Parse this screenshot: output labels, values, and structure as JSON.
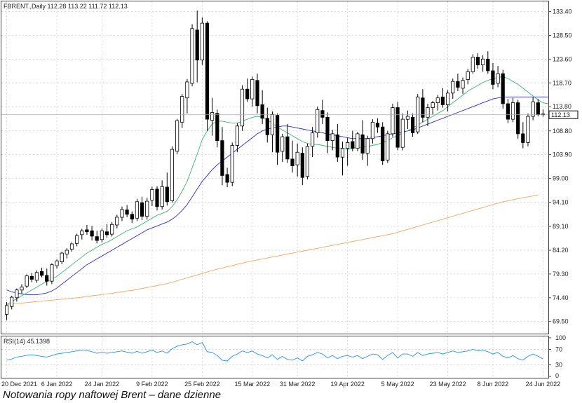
{
  "caption": "Notowania ropy naftowej Brent – dane dzienne",
  "chart_data": {
    "type": "candlestick",
    "instrument_header": "FBRENT.,Daily  112.28 113.22 111.72 112.13",
    "last_price_label": "112.13",
    "last_price": 112.13,
    "ylim": [
      67.0,
      135.5
    ],
    "y_ticks": [
      "133.40",
      "128.50",
      "123.60",
      "118.70",
      "113.80",
      "108.80",
      "103.90",
      "99.00",
      "94.10",
      "89.10",
      "84.20",
      "79.30",
      "74.40",
      "69.50"
    ],
    "x_ticks": [
      "20 Dec 2021",
      "6 Jan 2022",
      "24 Jan 2022",
      "9 Feb 2022",
      "25 Feb 2022",
      "15 Mar 2022",
      "31 Mar 2022",
      "19 Apr 2022",
      "5 May 2022",
      "23 May 2022",
      "8 Jun 2022",
      "24 Jun 2022"
    ],
    "grid": true,
    "colors": {
      "bull": "#ffffff",
      "bear": "#000000",
      "ma_short": "#3cb371",
      "ma_mid": "#2b2bd6",
      "ma_long": "#f4a460",
      "rsi": "#1e90ff",
      "grid": "#c8c8c8"
    },
    "candles": [
      {
        "o": 71.0,
        "h": 73.5,
        "l": 69.8,
        "c": 72.8
      },
      {
        "o": 72.6,
        "h": 74.8,
        "l": 72.0,
        "c": 74.5
      },
      {
        "o": 74.4,
        "h": 76.3,
        "l": 73.6,
        "c": 76.0
      },
      {
        "o": 76.0,
        "h": 77.2,
        "l": 75.2,
        "c": 76.6
      },
      {
        "o": 76.8,
        "h": 79.2,
        "l": 76.4,
        "c": 78.9
      },
      {
        "o": 78.8,
        "h": 79.5,
        "l": 77.6,
        "c": 78.2
      },
      {
        "o": 78.0,
        "h": 80.0,
        "l": 77.5,
        "c": 79.6
      },
      {
        "o": 79.8,
        "h": 80.6,
        "l": 78.6,
        "c": 79.0
      },
      {
        "o": 79.0,
        "h": 80.4,
        "l": 76.9,
        "c": 77.8
      },
      {
        "o": 77.8,
        "h": 81.5,
        "l": 77.2,
        "c": 81.2
      },
      {
        "o": 81.0,
        "h": 82.3,
        "l": 80.4,
        "c": 82.0
      },
      {
        "o": 81.8,
        "h": 83.9,
        "l": 81.3,
        "c": 83.6
      },
      {
        "o": 83.4,
        "h": 84.6,
        "l": 82.5,
        "c": 84.2
      },
      {
        "o": 84.4,
        "h": 85.8,
        "l": 83.9,
        "c": 85.5
      },
      {
        "o": 85.6,
        "h": 87.6,
        "l": 85.0,
        "c": 87.2
      },
      {
        "o": 87.4,
        "h": 88.6,
        "l": 86.4,
        "c": 88.2
      },
      {
        "o": 88.4,
        "h": 89.4,
        "l": 87.4,
        "c": 88.0
      },
      {
        "o": 88.2,
        "h": 89.2,
        "l": 86.2,
        "c": 87.1
      },
      {
        "o": 87.0,
        "h": 88.2,
        "l": 85.6,
        "c": 86.2
      },
      {
        "o": 86.4,
        "h": 88.7,
        "l": 85.8,
        "c": 88.2
      },
      {
        "o": 88.0,
        "h": 89.6,
        "l": 86.8,
        "c": 87.4
      },
      {
        "o": 87.5,
        "h": 90.0,
        "l": 87.0,
        "c": 89.5
      },
      {
        "o": 89.4,
        "h": 91.5,
        "l": 88.7,
        "c": 91.0
      },
      {
        "o": 91.0,
        "h": 93.2,
        "l": 90.2,
        "c": 92.6
      },
      {
        "o": 92.5,
        "h": 93.5,
        "l": 91.0,
        "c": 91.6
      },
      {
        "o": 91.6,
        "h": 92.2,
        "l": 89.8,
        "c": 90.6
      },
      {
        "o": 90.8,
        "h": 94.8,
        "l": 90.2,
        "c": 94.2
      },
      {
        "o": 94.0,
        "h": 95.2,
        "l": 90.4,
        "c": 91.2
      },
      {
        "o": 91.2,
        "h": 95.0,
        "l": 90.5,
        "c": 94.3
      },
      {
        "o": 94.5,
        "h": 97.3,
        "l": 93.3,
        "c": 96.7
      },
      {
        "o": 96.8,
        "h": 97.4,
        "l": 92.4,
        "c": 93.2
      },
      {
        "o": 93.2,
        "h": 98.6,
        "l": 92.6,
        "c": 97.3
      },
      {
        "o": 97.2,
        "h": 100.2,
        "l": 93.4,
        "c": 94.2
      },
      {
        "o": 94.4,
        "h": 105.6,
        "l": 94.0,
        "c": 105.0
      },
      {
        "o": 104.6,
        "h": 111.3,
        "l": 104.0,
        "c": 110.9
      },
      {
        "o": 110.6,
        "h": 116.4,
        "l": 109.4,
        "c": 115.9
      },
      {
        "o": 115.6,
        "h": 119.5,
        "l": 112.4,
        "c": 118.9
      },
      {
        "o": 118.6,
        "h": 130.8,
        "l": 118.0,
        "c": 129.9
      },
      {
        "o": 129.6,
        "h": 133.6,
        "l": 118.8,
        "c": 123.4
      },
      {
        "o": 123.4,
        "h": 132.2,
        "l": 122.4,
        "c": 131.0
      },
      {
        "o": 131.0,
        "h": 131.4,
        "l": 108.8,
        "c": 111.2
      },
      {
        "o": 111.0,
        "h": 115.6,
        "l": 107.8,
        "c": 112.6
      },
      {
        "o": 112.4,
        "h": 113.2,
        "l": 105.4,
        "c": 106.8
      },
      {
        "o": 106.8,
        "h": 109.6,
        "l": 97.6,
        "c": 99.6
      },
      {
        "o": 99.8,
        "h": 101.2,
        "l": 97.2,
        "c": 98.2
      },
      {
        "o": 98.2,
        "h": 106.4,
        "l": 97.4,
        "c": 105.8
      },
      {
        "o": 105.8,
        "h": 110.4,
        "l": 104.4,
        "c": 109.8
      },
      {
        "o": 109.8,
        "h": 118.2,
        "l": 108.8,
        "c": 117.4
      },
      {
        "o": 117.4,
        "h": 119.6,
        "l": 114.8,
        "c": 115.4
      },
      {
        "o": 115.4,
        "h": 120.0,
        "l": 113.8,
        "c": 119.4
      },
      {
        "o": 119.2,
        "h": 120.6,
        "l": 112.4,
        "c": 114.0
      },
      {
        "o": 114.2,
        "h": 117.2,
        "l": 110.2,
        "c": 111.4
      },
      {
        "o": 111.4,
        "h": 113.6,
        "l": 106.4,
        "c": 108.0
      },
      {
        "o": 108.0,
        "h": 112.8,
        "l": 104.4,
        "c": 112.2
      },
      {
        "o": 112.0,
        "h": 112.4,
        "l": 101.8,
        "c": 104.4
      },
      {
        "o": 104.6,
        "h": 108.2,
        "l": 102.4,
        "c": 107.6
      },
      {
        "o": 107.6,
        "h": 110.2,
        "l": 102.2,
        "c": 103.0
      },
      {
        "o": 103.0,
        "h": 106.8,
        "l": 100.2,
        "c": 101.6
      },
      {
        "o": 101.8,
        "h": 106.2,
        "l": 99.4,
        "c": 104.4
      },
      {
        "o": 104.2,
        "h": 105.4,
        "l": 97.6,
        "c": 99.2
      },
      {
        "o": 99.4,
        "h": 106.2,
        "l": 98.8,
        "c": 105.6
      },
      {
        "o": 105.6,
        "h": 109.6,
        "l": 103.4,
        "c": 108.4
      },
      {
        "o": 108.4,
        "h": 113.8,
        "l": 107.4,
        "c": 113.2
      },
      {
        "o": 113.0,
        "h": 115.2,
        "l": 110.2,
        "c": 111.6
      },
      {
        "o": 111.6,
        "h": 112.6,
        "l": 104.2,
        "c": 106.8
      },
      {
        "o": 106.8,
        "h": 109.0,
        "l": 104.8,
        "c": 108.2
      },
      {
        "o": 108.0,
        "h": 110.2,
        "l": 102.4,
        "c": 103.4
      },
      {
        "o": 103.4,
        "h": 106.6,
        "l": 99.6,
        "c": 105.2
      },
      {
        "o": 105.2,
        "h": 107.4,
        "l": 101.6,
        "c": 106.4
      },
      {
        "o": 106.6,
        "h": 108.8,
        "l": 104.6,
        "c": 105.2
      },
      {
        "o": 105.2,
        "h": 108.6,
        "l": 104.6,
        "c": 108.2
      },
      {
        "o": 108.0,
        "h": 111.0,
        "l": 102.8,
        "c": 104.2
      },
      {
        "o": 104.2,
        "h": 107.8,
        "l": 101.6,
        "c": 107.2
      },
      {
        "o": 107.2,
        "h": 111.2,
        "l": 106.2,
        "c": 110.6
      },
      {
        "o": 110.4,
        "h": 111.4,
        "l": 108.4,
        "c": 109.6
      },
      {
        "o": 109.6,
        "h": 110.6,
        "l": 101.8,
        "c": 102.6
      },
      {
        "o": 102.8,
        "h": 108.8,
        "l": 102.2,
        "c": 108.2
      },
      {
        "o": 108.2,
        "h": 114.4,
        "l": 107.6,
        "c": 113.6
      },
      {
        "o": 113.6,
        "h": 114.8,
        "l": 104.8,
        "c": 105.4
      },
      {
        "o": 105.4,
        "h": 112.4,
        "l": 104.8,
        "c": 111.2
      },
      {
        "o": 111.2,
        "h": 113.0,
        "l": 109.2,
        "c": 111.8
      },
      {
        "o": 111.6,
        "h": 112.4,
        "l": 107.6,
        "c": 108.4
      },
      {
        "o": 108.6,
        "h": 116.4,
        "l": 108.2,
        "c": 115.8
      },
      {
        "o": 115.6,
        "h": 117.4,
        "l": 110.6,
        "c": 111.6
      },
      {
        "o": 111.6,
        "h": 114.4,
        "l": 109.8,
        "c": 113.6
      },
      {
        "o": 113.6,
        "h": 115.0,
        "l": 112.2,
        "c": 114.6
      },
      {
        "o": 114.6,
        "h": 116.2,
        "l": 113.0,
        "c": 115.6
      },
      {
        "o": 115.8,
        "h": 117.6,
        "l": 113.6,
        "c": 114.2
      },
      {
        "o": 114.2,
        "h": 117.2,
        "l": 112.8,
        "c": 116.6
      },
      {
        "o": 116.6,
        "h": 119.6,
        "l": 115.4,
        "c": 119.0
      },
      {
        "o": 119.0,
        "h": 120.6,
        "l": 117.0,
        "c": 117.8
      },
      {
        "o": 117.6,
        "h": 119.8,
        "l": 116.4,
        "c": 119.2
      },
      {
        "o": 119.4,
        "h": 121.6,
        "l": 118.4,
        "c": 121.0
      },
      {
        "o": 121.0,
        "h": 124.6,
        "l": 120.6,
        "c": 124.0
      },
      {
        "o": 124.0,
        "h": 124.8,
        "l": 121.6,
        "c": 122.4
      },
      {
        "o": 122.4,
        "h": 124.4,
        "l": 121.0,
        "c": 123.6
      },
      {
        "o": 123.6,
        "h": 125.2,
        "l": 120.6,
        "c": 121.2
      },
      {
        "o": 121.2,
        "h": 122.8,
        "l": 117.4,
        "c": 118.4
      },
      {
        "o": 118.6,
        "h": 122.2,
        "l": 117.8,
        "c": 120.6
      },
      {
        "o": 120.6,
        "h": 121.4,
        "l": 113.4,
        "c": 114.4
      },
      {
        "o": 114.4,
        "h": 115.4,
        "l": 110.4,
        "c": 111.2
      },
      {
        "o": 111.2,
        "h": 115.6,
        "l": 110.6,
        "c": 114.6
      },
      {
        "o": 114.6,
        "h": 115.2,
        "l": 107.2,
        "c": 108.2
      },
      {
        "o": 108.2,
        "h": 110.6,
        "l": 105.2,
        "c": 106.4
      },
      {
        "o": 106.4,
        "h": 112.4,
        "l": 105.6,
        "c": 111.8
      },
      {
        "o": 111.8,
        "h": 115.8,
        "l": 111.0,
        "c": 114.8
      },
      {
        "o": 114.6,
        "h": 115.4,
        "l": 111.8,
        "c": 112.2
      },
      {
        "o": 112.28,
        "h": 113.22,
        "l": 111.72,
        "c": 112.13
      }
    ],
    "ma_short": [
      73.0,
      73.6,
      74.2,
      74.8,
      75.4,
      76.0,
      76.6,
      77.2,
      77.8,
      78.2,
      78.8,
      79.6,
      80.4,
      81.2,
      82.0,
      82.8,
      83.6,
      84.2,
      84.8,
      85.4,
      85.8,
      86.4,
      87.0,
      87.6,
      88.2,
      88.6,
      89.0,
      89.6,
      90.2,
      90.8,
      91.4,
      91.8,
      92.2,
      93.2,
      94.6,
      96.4,
      98.4,
      101.2,
      104.0,
      107.0,
      108.8,
      110.2,
      110.8,
      110.8,
      110.6,
      110.4,
      110.4,
      110.8,
      111.2,
      111.6,
      111.8,
      111.6,
      111.0,
      110.4,
      109.6,
      109.0,
      108.4,
      107.8,
      107.2,
      106.6,
      106.2,
      106.0,
      106.0,
      105.8,
      105.6,
      105.4,
      105.2,
      105.2,
      105.0,
      105.2,
      105.4,
      105.4,
      105.6,
      105.8,
      106.0,
      106.4,
      106.8,
      107.4,
      107.8,
      108.4,
      108.8,
      109.4,
      110.0,
      110.6,
      111.2,
      111.8,
      112.4,
      113.0,
      113.8,
      114.6,
      115.4,
      116.2,
      117.0,
      117.6,
      118.2,
      118.8,
      119.2,
      119.6,
      119.8,
      120.0,
      119.6,
      119.0,
      118.4,
      117.6,
      116.8,
      116.0,
      115.2,
      114.6,
      114.4
    ],
    "ma_mid": [
      76.0,
      75.6,
      75.4,
      75.2,
      75.0,
      75.0,
      75.0,
      75.2,
      75.4,
      75.8,
      76.4,
      77.2,
      78.0,
      78.8,
      79.6,
      80.4,
      81.2,
      81.8,
      82.4,
      83.0,
      83.6,
      84.2,
      84.8,
      85.4,
      86.0,
      86.6,
      87.2,
      87.8,
      88.4,
      88.8,
      89.2,
      89.6,
      90.0,
      90.6,
      91.4,
      92.4,
      93.6,
      95.2,
      96.8,
      98.4,
      99.6,
      100.8,
      101.8,
      102.6,
      103.4,
      104.2,
      105.0,
      105.8,
      106.6,
      107.4,
      108.2,
      108.8,
      109.2,
      109.4,
      109.6,
      109.8,
      109.8,
      109.6,
      109.4,
      109.2,
      109.0,
      108.8,
      108.6,
      108.4,
      108.2,
      108.0,
      107.8,
      107.6,
      107.4,
      107.2,
      107.2,
      107.2,
      107.2,
      107.4,
      107.6,
      107.8,
      108.0,
      108.2,
      108.4,
      108.6,
      108.8,
      109.0,
      109.4,
      109.8,
      110.2,
      110.6,
      111.0,
      111.4,
      111.8,
      112.2,
      112.6,
      113.0,
      113.4,
      113.8,
      114.2,
      114.6,
      115.0,
      115.4,
      115.6,
      115.8,
      115.8,
      115.8,
      115.8,
      115.8,
      115.8,
      115.8,
      115.8,
      115.8,
      115.8
    ],
    "ma_long": [
      73.0,
      73.1,
      73.2,
      73.3,
      73.4,
      73.5,
      73.6,
      73.7,
      73.8,
      73.9,
      74.0,
      74.1,
      74.2,
      74.3,
      74.4,
      74.5,
      74.7,
      74.8,
      74.9,
      75.1,
      75.2,
      75.3,
      75.5,
      75.6,
      75.8,
      75.9,
      76.1,
      76.3,
      76.5,
      76.7,
      76.9,
      77.1,
      77.3,
      77.6,
      77.9,
      78.2,
      78.5,
      78.8,
      79.1,
      79.4,
      79.7,
      80.0,
      80.3,
      80.5,
      80.8,
      81.0,
      81.3,
      81.5,
      81.8,
      82.0,
      82.2,
      82.4,
      82.6,
      82.8,
      83.0,
      83.2,
      83.4,
      83.6,
      83.8,
      84.0,
      84.2,
      84.4,
      84.6,
      84.8,
      85.0,
      85.2,
      85.4,
      85.6,
      85.8,
      86.0,
      86.2,
      86.4,
      86.6,
      86.8,
      87.0,
      87.2,
      87.4,
      87.6,
      87.9,
      88.2,
      88.5,
      88.8,
      89.1,
      89.4,
      89.7,
      90.0,
      90.3,
      90.6,
      90.9,
      91.2,
      91.5,
      91.8,
      92.1,
      92.4,
      92.7,
      93.0,
      93.3,
      93.6,
      93.9,
      94.2,
      94.4,
      94.6,
      94.8,
      95.0,
      95.2,
      95.4,
      95.6
    ],
    "rsi": {
      "header": "RSI(14) 45.1398",
      "ylim": [
        0,
        100
      ],
      "levels": [
        30,
        70
      ],
      "ticks": [
        "100",
        "70",
        "30",
        "0"
      ],
      "values": [
        42,
        45,
        50,
        52,
        55,
        56,
        54,
        52,
        50,
        54,
        58,
        60,
        62,
        64,
        66,
        68,
        67,
        64,
        60,
        62,
        60,
        62,
        64,
        66,
        63,
        60,
        65,
        60,
        64,
        68,
        62,
        66,
        60,
        72,
        78,
        82,
        84,
        90,
        82,
        88,
        64,
        62,
        54,
        42,
        40,
        52,
        58,
        66,
        62,
        66,
        58,
        54,
        48,
        56,
        44,
        52,
        44,
        42,
        48,
        40,
        52,
        56,
        62,
        58,
        48,
        54,
        46,
        52,
        54,
        50,
        54,
        46,
        52,
        58,
        56,
        44,
        54,
        62,
        48,
        58,
        58,
        52,
        62,
        54,
        58,
        60,
        62,
        58,
        62,
        66,
        62,
        64,
        66,
        70,
        66,
        68,
        64,
        58,
        62,
        52,
        48,
        54,
        46,
        42,
        52,
        58,
        52,
        45.14
      ]
    }
  }
}
